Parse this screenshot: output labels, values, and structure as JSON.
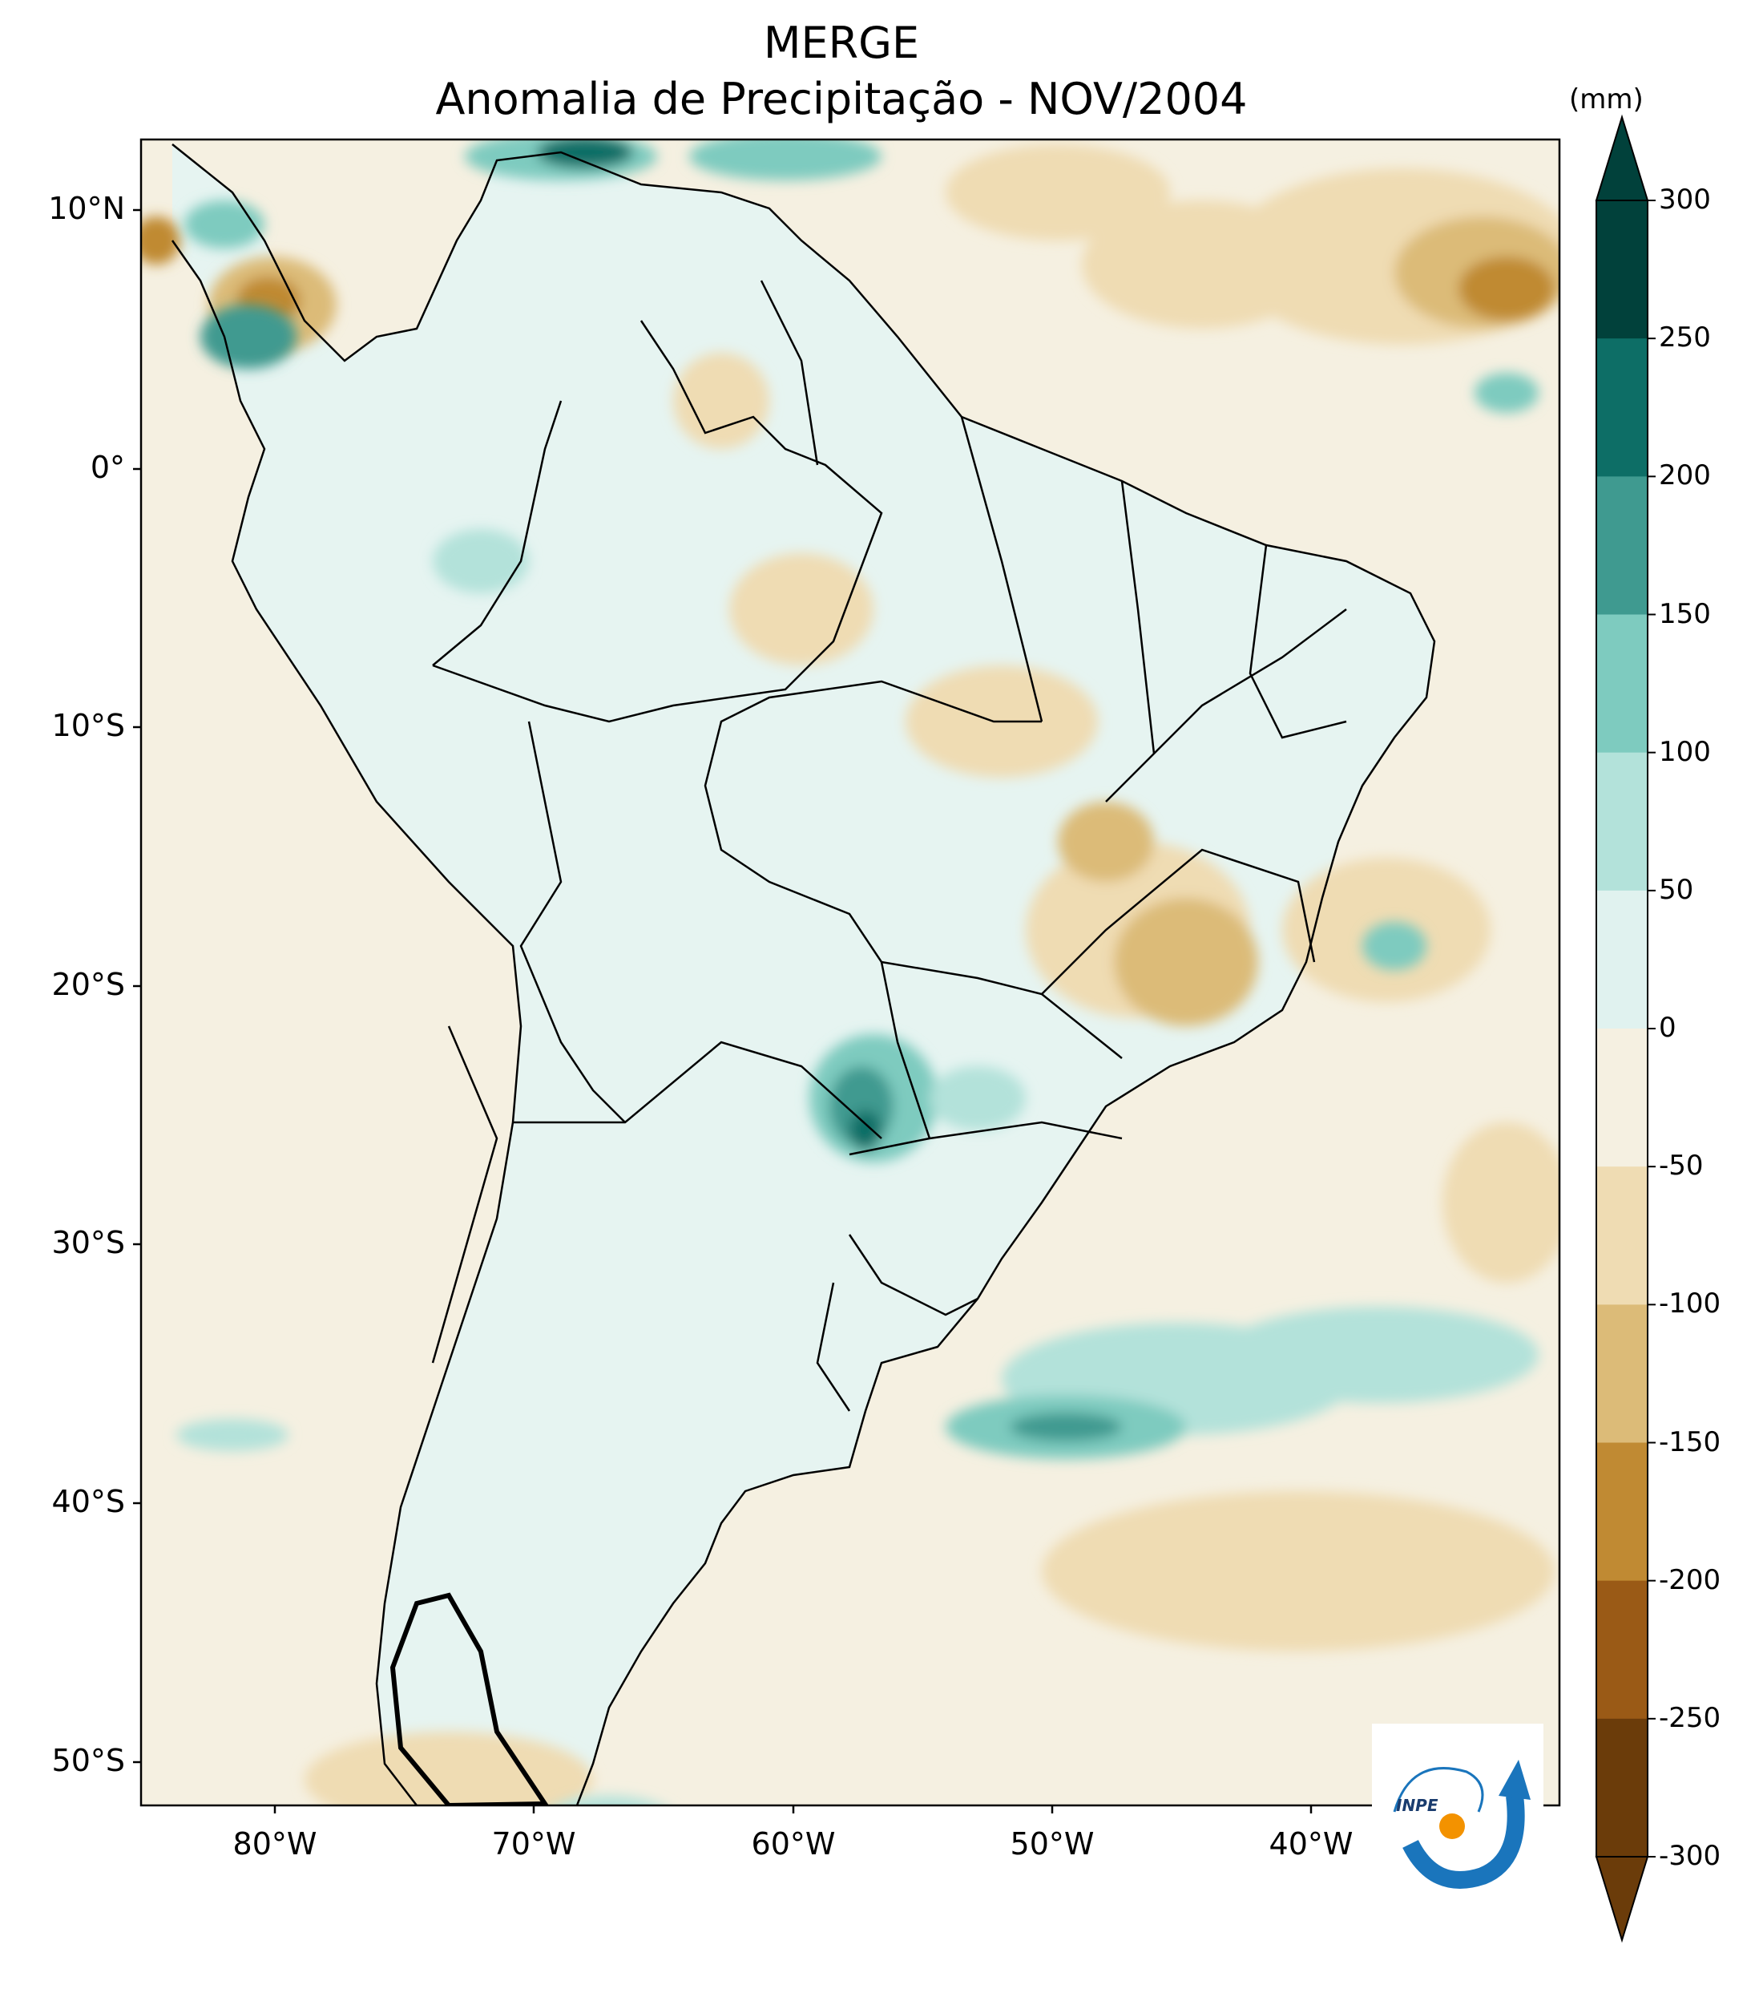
{
  "title": {
    "line1": "MERGE",
    "line2": "Anomalia de Precipitação - NOV/2004"
  },
  "colorbar": {
    "unit": "(mm)",
    "levels": [
      "300",
      "250",
      "200",
      "150",
      "100",
      "50",
      "0",
      "-50",
      "-100",
      "-150",
      "-200",
      "-250",
      "-300"
    ],
    "colors": [
      "#01413b",
      "#0d6e66",
      "#3f9a90",
      "#7ecbbf",
      "#b3e2da",
      "#e0f2ef",
      "#f5f0e1",
      "#efdcb3",
      "#dcbb78",
      "#c08a33",
      "#9a5a16",
      "#6b3c0a"
    ]
  },
  "axes": {
    "lat_labels": [
      "10°N",
      "0°",
      "10°S",
      "20°S",
      "30°S",
      "40°S",
      "50°S"
    ],
    "lon_labels": [
      "80°W",
      "70°W",
      "60°W",
      "50°W",
      "40°W"
    ]
  },
  "logo": {
    "text": "INPE"
  },
  "palette": {
    "ocean": "#f5f0e1",
    "land_light": "#e6f4f1",
    "dry": "#efdcb3",
    "dry2": "#dcbb78",
    "dry3": "#c08a33",
    "wet1": "#b3e2da",
    "wet2": "#7ecbbf",
    "wet3": "#3f9a90",
    "wet4": "#0d6e66",
    "wet5": "#01413b",
    "logo_blue": "#1a75bc",
    "logo_orange": "#f39200"
  }
}
